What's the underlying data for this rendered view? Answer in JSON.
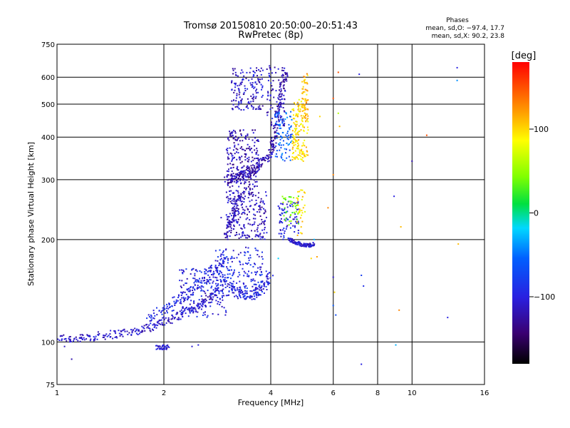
{
  "chart_data": {
    "type": "scatter",
    "title": "Tromsø 20150810 20:50:00–20:51:43",
    "subtitle": "RwPretec (8p)",
    "xlabel": "Frequency [MHz]",
    "ylabel": "Stationary phase Virtual Height [km]",
    "x_scale": "log",
    "y_scale": "log",
    "xlim": [
      1,
      16
    ],
    "ylim": [
      75,
      750
    ],
    "x_ticks": [
      1,
      2,
      4,
      6,
      8,
      10,
      16
    ],
    "x_tick_labels": [
      "1",
      "2",
      "4",
      "6",
      "8",
      "10",
      "16"
    ],
    "y_ticks": [
      75,
      100,
      200,
      300,
      400,
      500,
      600,
      750
    ],
    "y_tick_labels": [
      "75",
      "100",
      "200",
      "300",
      "400",
      "500",
      "600",
      "750"
    ],
    "grid": true,
    "stats": {
      "title": "Phases",
      "lines": [
        "mean, sd,O: −97.4, 17.7",
        "mean, sd,X:  90.2, 23.8"
      ]
    },
    "colorbar": {
      "label": "[deg]",
      "range": [
        -180,
        180
      ],
      "ticks": [
        100,
        0,
        -100
      ],
      "tick_labels": [
        "100",
        "0",
        "−100"
      ]
    },
    "traces": [
      {
        "type": "curve",
        "phase": -110,
        "points": [
          [
            1.0,
            103
          ],
          [
            1.15,
            102
          ],
          [
            1.3,
            104
          ],
          [
            1.5,
            106
          ],
          [
            1.7,
            108
          ],
          [
            1.9,
            112
          ],
          [
            2.1,
            117
          ],
          [
            2.3,
            122
          ],
          [
            2.5,
            128
          ],
          [
            2.7,
            135
          ],
          [
            2.9,
            145
          ]
        ],
        "jitter": 0.035
      },
      {
        "type": "curve",
        "phase": -95,
        "points": [
          [
            1.8,
            115
          ],
          [
            2.0,
            124
          ],
          [
            2.2,
            132
          ],
          [
            2.4,
            142
          ],
          [
            2.6,
            152
          ],
          [
            2.8,
            165
          ],
          [
            3.0,
            180
          ]
        ],
        "jitter": 0.05
      },
      {
        "type": "curve",
        "phase": -100,
        "points": [
          [
            3.0,
            148
          ],
          [
            3.2,
            140
          ],
          [
            3.4,
            137
          ],
          [
            3.6,
            138
          ],
          [
            3.8,
            144
          ],
          [
            4.0,
            160
          ]
        ],
        "jitter": 0.04
      },
      {
        "type": "curve",
        "phase": -115,
        "points": [
          [
            3.0,
            205
          ],
          [
            3.1,
            230
          ],
          [
            3.2,
            255
          ],
          [
            3.3,
            275
          ]
        ],
        "jitter": 0.04
      },
      {
        "type": "curve",
        "phase": -120,
        "points": [
          [
            3.0,
            300
          ],
          [
            3.2,
            305
          ],
          [
            3.4,
            312
          ],
          [
            3.6,
            322
          ],
          [
            3.8,
            338
          ],
          [
            4.0,
            360
          ],
          [
            4.1,
            400
          ],
          [
            4.2,
            480
          ],
          [
            4.3,
            560
          ],
          [
            4.4,
            620
          ]
        ],
        "jitter": 0.035
      },
      {
        "type": "curve",
        "phase": -105,
        "points": [
          [
            4.5,
            200
          ],
          [
            4.7,
            196
          ],
          [
            4.9,
            193
          ],
          [
            5.1,
            192
          ],
          [
            5.3,
            194
          ]
        ],
        "jitter": 0.015
      }
    ],
    "clusters": [
      {
        "x": [
          3.0,
          3.7
        ],
        "y": [
          280,
          420
        ],
        "n": 240,
        "phase": -120
      },
      {
        "x": [
          3.1,
          3.8
        ],
        "y": [
          480,
          640
        ],
        "n": 150,
        "phase": -110
      },
      {
        "x": [
          3.0,
          3.9
        ],
        "y": [
          200,
          280
        ],
        "n": 220,
        "phase": -115
      },
      {
        "x": [
          2.8,
          3.8
        ],
        "y": [
          135,
          190
        ],
        "n": 180,
        "phase": -95
      },
      {
        "x": [
          2.2,
          3.0
        ],
        "y": [
          118,
          165
        ],
        "n": 140,
        "phase": -100
      },
      {
        "x": [
          3.9,
          4.4
        ],
        "y": [
          430,
          650
        ],
        "n": 80,
        "phase": -110
      },
      {
        "x": [
          4.1,
          4.6
        ],
        "y": [
          340,
          480
        ],
        "n": 90,
        "phase": -60
      },
      {
        "x": [
          4.6,
          5.1
        ],
        "y": [
          340,
          520
        ],
        "n": 160,
        "phase": 100
      },
      {
        "x": [
          4.9,
          5.1
        ],
        "y": [
          450,
          620
        ],
        "n": 50,
        "phase": 110
      },
      {
        "x": [
          4.2,
          4.8
        ],
        "y": [
          200,
          260
        ],
        "n": 80,
        "phase": -100
      },
      {
        "x": [
          4.3,
          4.9
        ],
        "y": [
          220,
          270
        ],
        "n": 40,
        "phase": 40
      },
      {
        "x": [
          4.7,
          5.0
        ],
        "y": [
          205,
          280
        ],
        "n": 30,
        "phase": 95
      },
      {
        "x": [
          1.9,
          2.1
        ],
        "y": [
          95,
          98
        ],
        "n": 30,
        "phase": -110
      }
    ],
    "points": [
      {
        "x": 6.2,
        "y": 620,
        "phase": 150
      },
      {
        "x": 7.1,
        "y": 612,
        "phase": -100
      },
      {
        "x": 6.0,
        "y": 520,
        "phase": 150
      },
      {
        "x": 6.2,
        "y": 470,
        "phase": 60
      },
      {
        "x": 5.5,
        "y": 460,
        "phase": 100
      },
      {
        "x": 6.25,
        "y": 430,
        "phase": 110
      },
      {
        "x": 11.0,
        "y": 405,
        "phase": 150
      },
      {
        "x": 10.0,
        "y": 340,
        "phase": -120
      },
      {
        "x": 6.0,
        "y": 310,
        "phase": 130
      },
      {
        "x": 8.9,
        "y": 268,
        "phase": -100
      },
      {
        "x": 5.8,
        "y": 248,
        "phase": 130
      },
      {
        "x": 9.3,
        "y": 218,
        "phase": 110
      },
      {
        "x": 5.4,
        "y": 178,
        "phase": 120
      },
      {
        "x": 5.2,
        "y": 176,
        "phase": 100
      },
      {
        "x": 7.2,
        "y": 157,
        "phase": -80
      },
      {
        "x": 7.3,
        "y": 146,
        "phase": -90
      },
      {
        "x": 6.0,
        "y": 155,
        "phase": -110
      },
      {
        "x": 6.05,
        "y": 140,
        "phase": 100
      },
      {
        "x": 6.0,
        "y": 128,
        "phase": -60
      },
      {
        "x": 6.1,
        "y": 120,
        "phase": -70
      },
      {
        "x": 9.2,
        "y": 124,
        "phase": 130
      },
      {
        "x": 12.6,
        "y": 118,
        "phase": -100
      },
      {
        "x": 9.0,
        "y": 98,
        "phase": -30
      },
      {
        "x": 7.2,
        "y": 86,
        "phase": -100
      },
      {
        "x": 13.4,
        "y": 640,
        "phase": -100
      },
      {
        "x": 13.4,
        "y": 587,
        "phase": -40
      },
      {
        "x": 13.5,
        "y": 194,
        "phase": 110
      },
      {
        "x": 1.05,
        "y": 97,
        "phase": -110
      },
      {
        "x": 1.1,
        "y": 89,
        "phase": -120
      },
      {
        "x": 2.5,
        "y": 98,
        "phase": -100
      },
      {
        "x": 2.9,
        "y": 232,
        "phase": -110
      },
      {
        "x": 2.4,
        "y": 97,
        "phase": -105
      },
      {
        "x": 5.3,
        "y": 200,
        "phase": -30
      },
      {
        "x": 4.2,
        "y": 176,
        "phase": -20
      }
    ]
  }
}
